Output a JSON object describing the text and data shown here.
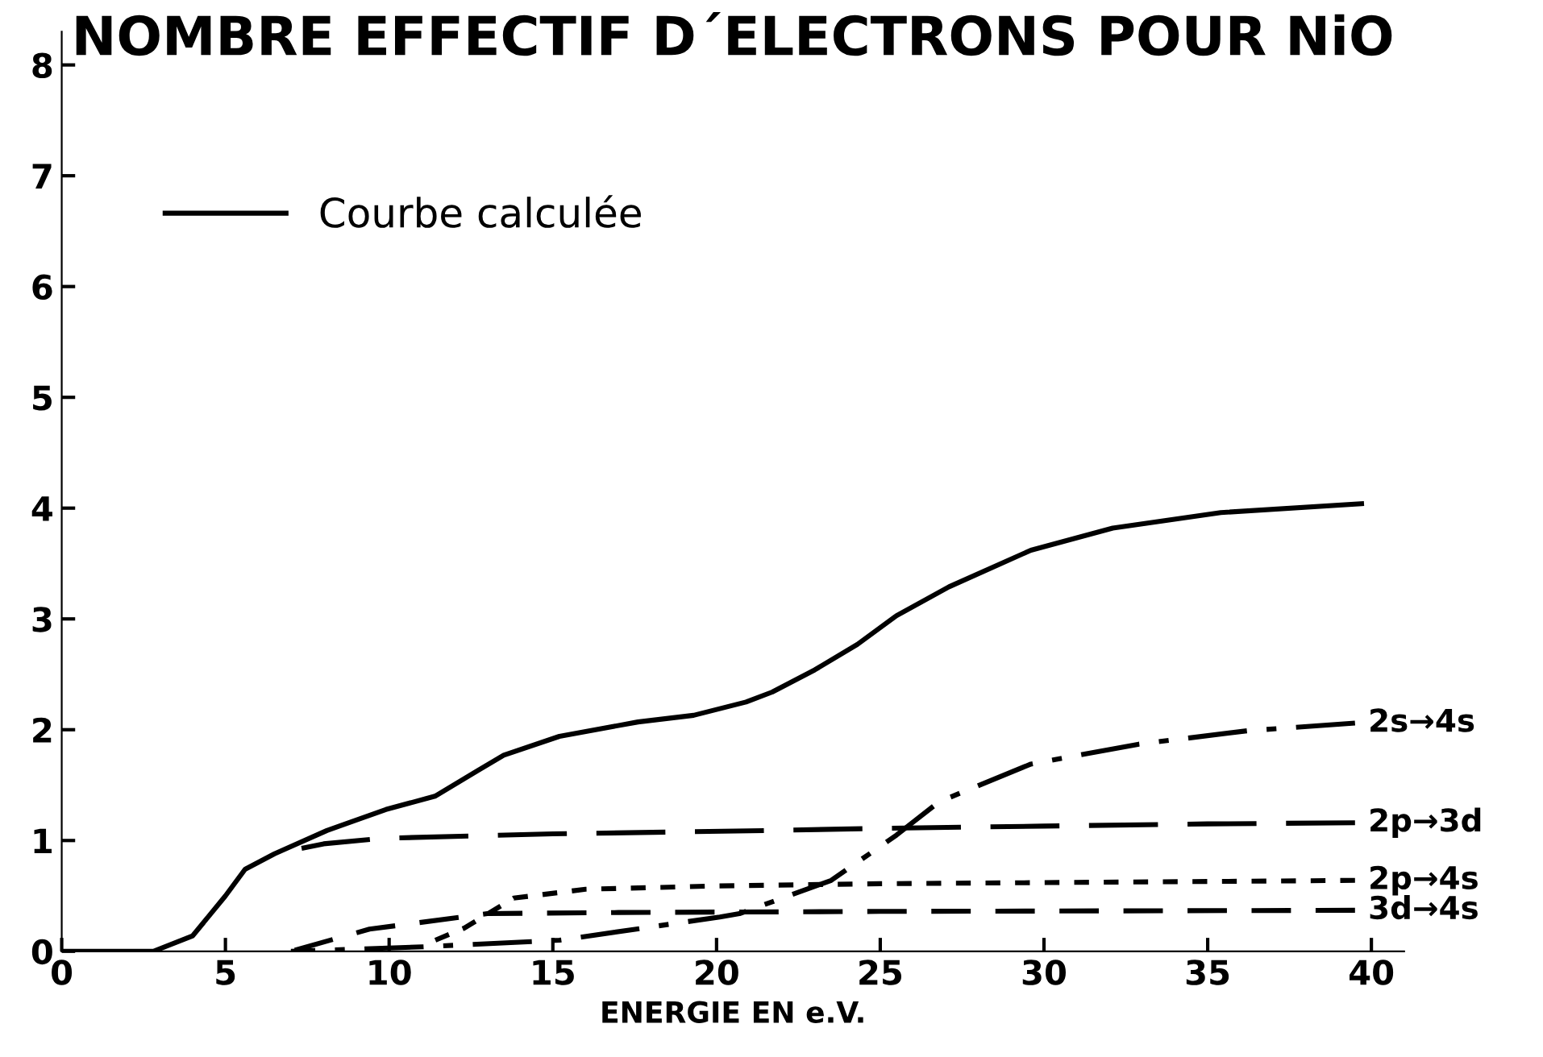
{
  "chart_data": {
    "type": "line",
    "title": "NOMBRE EFFECTIF D´ELECTRONS POUR NiO",
    "xlabel": "ENERGIE EN e.V.",
    "xlim": [
      0,
      41
    ],
    "ylim": [
      0,
      8.3
    ],
    "xticks": [
      0,
      5,
      10,
      15,
      20,
      25,
      30,
      35,
      40
    ],
    "yticks": [
      0,
      1,
      2,
      3,
      4,
      5,
      6,
      7,
      8
    ],
    "grid": false,
    "legend": "top left",
    "marker": "none",
    "series": [
      {
        "name": "Courbe calculée",
        "color": "#000000",
        "line_style": "solid",
        "x": [
          0,
          2.8,
          4.0,
          5.0,
          5.6,
          6.5,
          8.1,
          9.9,
          11.4,
          12.7,
          13.5,
          15.2,
          17.6,
          19.3,
          20.9,
          21.7,
          23.0,
          24.3,
          25.5,
          27.1,
          29.6,
          32.1,
          35.4,
          39.7
        ],
        "values": [
          0,
          0,
          0.14,
          0.5,
          0.74,
          0.88,
          1.09,
          1.28,
          1.4,
          1.63,
          1.77,
          1.94,
          2.07,
          2.13,
          2.25,
          2.34,
          2.54,
          2.77,
          3.03,
          3.29,
          3.62,
          3.82,
          3.96,
          4.04
        ]
      },
      {
        "name": "2s→4s",
        "color": "#000000",
        "line_style": "dashdot",
        "x": [
          7,
          11,
          15.2,
          20.1,
          20.7,
          23.5,
          25.5,
          26.8,
          29.6,
          32.9,
          36.2,
          39.5
        ],
        "values": [
          0,
          0.04,
          0.1,
          0.31,
          0.34,
          0.64,
          1.05,
          1.35,
          1.69,
          1.87,
          1.99,
          2.06
        ]
      },
      {
        "name": "2p→3d",
        "color": "#000000",
        "line_style": "longdash",
        "x": [
          6.5,
          8,
          9.8,
          15,
          21.6,
          25,
          30,
          35,
          39.5
        ],
        "values": [
          0.88,
          0.97,
          1.02,
          1.06,
          1.09,
          1.11,
          1.13,
          1.15,
          1.16
        ]
      },
      {
        "name": "2p→4s",
        "color": "#000000",
        "line_style": "dotted",
        "x": [
          11,
          12.3,
          13.8,
          16,
          20,
          25,
          30,
          35,
          39.5
        ],
        "values": [
          0.05,
          0.21,
          0.48,
          0.56,
          0.59,
          0.61,
          0.62,
          0.63,
          0.64
        ]
      },
      {
        "name": "3d→4s",
        "color": "#000000",
        "line_style": "dashed",
        "x": [
          7,
          9.4,
          13,
          17,
          25,
          39.5
        ],
        "values": [
          0,
          0.2,
          0.34,
          0.35,
          0.36,
          0.37
        ]
      }
    ]
  }
}
